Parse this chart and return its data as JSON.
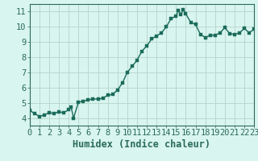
{
  "x": [
    0,
    0.5,
    1,
    1.5,
    2,
    2.5,
    3,
    3.5,
    4,
    4.25,
    4.5,
    5,
    5.5,
    6,
    6.5,
    7,
    7.5,
    8,
    8.5,
    9,
    9.5,
    10,
    10.5,
    11,
    11.5,
    12,
    12.5,
    13,
    13.5,
    14,
    14.5,
    15,
    15.25,
    15.5,
    15.75,
    16,
    16.5,
    17,
    17.5,
    18,
    18.5,
    19,
    19.5,
    20,
    20.5,
    21,
    21.5,
    22,
    22.5,
    23
  ],
  "y": [
    4.5,
    4.3,
    4.1,
    4.2,
    4.35,
    4.3,
    4.4,
    4.35,
    4.55,
    4.7,
    4.0,
    5.05,
    5.1,
    5.2,
    5.25,
    5.25,
    5.3,
    5.5,
    5.55,
    5.85,
    6.3,
    7.0,
    7.4,
    7.8,
    8.4,
    8.75,
    9.2,
    9.4,
    9.6,
    10.0,
    10.55,
    10.7,
    11.1,
    10.8,
    11.15,
    10.85,
    10.3,
    10.15,
    9.5,
    9.3,
    9.45,
    9.45,
    9.6,
    9.95,
    9.55,
    9.5,
    9.6,
    9.9,
    9.6,
    9.85
  ],
  "line_color": "#1a6b5a",
  "marker_color": "#1a6b5a",
  "bg_color": "#d9f5ef",
  "grid_color": "#b8d8d0",
  "axis_color": "#2a6b5a",
  "xlabel": "Humidex (Indice chaleur)",
  "xlim": [
    0,
    23
  ],
  "ylim": [
    3.5,
    11.5
  ],
  "yticks": [
    4,
    5,
    6,
    7,
    8,
    9,
    10,
    11
  ],
  "xticks": [
    0,
    1,
    2,
    3,
    4,
    5,
    6,
    7,
    8,
    9,
    10,
    11,
    12,
    13,
    14,
    15,
    16,
    17,
    18,
    19,
    20,
    21,
    22,
    23
  ],
  "marker_size": 2.2,
  "line_width": 1.0,
  "tick_fontsize": 7.5,
  "xlabel_fontsize": 8.5
}
